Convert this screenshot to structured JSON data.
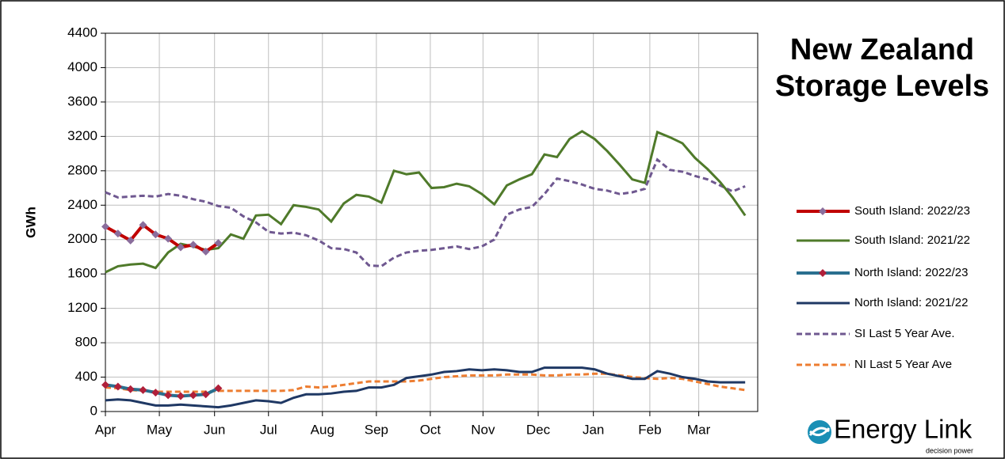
{
  "chart_data": {
    "type": "line",
    "title": "New Zealand Storage Levels",
    "y_label": "GWh",
    "x": [
      0,
      1,
      2,
      3,
      4,
      5,
      6,
      7,
      8,
      9,
      10,
      11,
      12,
      13,
      14,
      15,
      16,
      17,
      18,
      19,
      20,
      21,
      22,
      23,
      24,
      25,
      26,
      27,
      28,
      29,
      30,
      31,
      32,
      33,
      34,
      35,
      36,
      37,
      38,
      39,
      40,
      41,
      42,
      43,
      44,
      45,
      46,
      47,
      48,
      49,
      50,
      51
    ],
    "xlim": [
      0,
      52
    ],
    "xticks": [
      {
        "value": 0,
        "label": "Apr"
      },
      {
        "value": 4.3,
        "label": "May"
      },
      {
        "value": 8.7,
        "label": "Jun"
      },
      {
        "value": 13,
        "label": "Jul"
      },
      {
        "value": 17.3,
        "label": "Aug"
      },
      {
        "value": 21.6,
        "label": "Sep"
      },
      {
        "value": 25.9,
        "label": "Oct"
      },
      {
        "value": 30.1,
        "label": "Nov"
      },
      {
        "value": 34.5,
        "label": "Dec"
      },
      {
        "value": 38.9,
        "label": "Jan"
      },
      {
        "value": 43.4,
        "label": "Feb"
      },
      {
        "value": 47.3,
        "label": "Mar"
      }
    ],
    "ylim": [
      0,
      4400
    ],
    "yticks": [
      0,
      400,
      800,
      1200,
      1600,
      2000,
      2400,
      2800,
      3200,
      3600,
      4000,
      4400
    ],
    "grid": true,
    "legend": "right",
    "series": [
      {
        "name": "South Island: 2022/23",
        "color": "#c00000",
        "marker": "diamond",
        "marker_color": "#8a6d9c",
        "dash": "solid",
        "values": [
          2150,
          2070,
          1990,
          2170,
          2060,
          2010,
          1910,
          1940,
          1860,
          1960,
          null,
          null,
          null,
          null,
          null,
          null,
          null,
          null,
          null,
          null,
          null,
          null,
          null,
          null,
          null,
          null,
          null,
          null,
          null,
          null,
          null,
          null,
          null,
          null,
          null,
          null,
          null,
          null,
          null,
          null,
          null,
          null,
          null,
          null,
          null,
          null,
          null,
          null,
          null,
          null,
          null,
          null
        ]
      },
      {
        "name": "South Island: 2021/22",
        "color": "#4f7a2a",
        "dash": "solid",
        "values": [
          1620,
          1690,
          1710,
          1720,
          1670,
          1850,
          1950,
          1920,
          1880,
          1900,
          2060,
          2010,
          2280,
          2290,
          2180,
          2400,
          2380,
          2350,
          2210,
          2420,
          2520,
          2500,
          2430,
          2800,
          2760,
          2780,
          2600,
          2610,
          2650,
          2620,
          2530,
          2410,
          2630,
          2700,
          2760,
          2990,
          2960,
          3170,
          3260,
          3170,
          3030,
          2870,
          2700,
          2660,
          3250,
          3190,
          3120,
          2950,
          2820,
          2670,
          2490,
          2280
        ]
      },
      {
        "name": "North Island: 2022/23",
        "color": "#2a6f8f",
        "marker": "diamond",
        "marker_color": "#b0203a",
        "dash": "solid",
        "values": [
          310,
          290,
          260,
          250,
          220,
          190,
          180,
          190,
          200,
          270,
          null,
          null,
          null,
          null,
          null,
          null,
          null,
          null,
          null,
          null,
          null,
          null,
          null,
          null,
          null,
          null,
          null,
          null,
          null,
          null,
          null,
          null,
          null,
          null,
          null,
          null,
          null,
          null,
          null,
          null,
          null,
          null,
          null,
          null,
          null,
          null,
          null,
          null,
          null,
          null,
          null,
          null
        ]
      },
      {
        "name": "North Island: 2021/22",
        "color": "#1f3864",
        "dash": "solid",
        "values": [
          130,
          140,
          130,
          100,
          70,
          70,
          80,
          70,
          60,
          50,
          70,
          100,
          130,
          120,
          100,
          160,
          200,
          200,
          210,
          230,
          240,
          280,
          280,
          310,
          390,
          410,
          430,
          460,
          470,
          490,
          480,
          490,
          480,
          460,
          460,
          510,
          510,
          510,
          510,
          490,
          440,
          410,
          380,
          380,
          470,
          440,
          400,
          380,
          350,
          340,
          340,
          340
        ]
      },
      {
        "name": "SI Last 5 Year Ave.",
        "color": "#6f5890",
        "dash": "dashed",
        "values": [
          2550,
          2490,
          2500,
          2510,
          2500,
          2530,
          2510,
          2470,
          2440,
          2390,
          2370,
          2270,
          2200,
          2090,
          2070,
          2080,
          2050,
          1990,
          1900,
          1890,
          1850,
          1700,
          1690,
          1790,
          1850,
          1870,
          1880,
          1900,
          1920,
          1890,
          1920,
          2000,
          2290,
          2350,
          2380,
          2530,
          2710,
          2680,
          2640,
          2590,
          2570,
          2530,
          2550,
          2590,
          2930,
          2810,
          2790,
          2740,
          2700,
          2630,
          2560,
          2620
        ]
      },
      {
        "name": "NI Last 5 Year Ave",
        "color": "#ed7d31",
        "dash": "dashed",
        "values": [
          280,
          270,
          250,
          240,
          230,
          230,
          230,
          230,
          230,
          240,
          240,
          240,
          240,
          240,
          240,
          250,
          290,
          280,
          290,
          310,
          330,
          350,
          350,
          350,
          350,
          360,
          380,
          400,
          410,
          420,
          420,
          420,
          430,
          430,
          430,
          420,
          420,
          430,
          430,
          440,
          440,
          420,
          400,
          390,
          380,
          390,
          380,
          350,
          320,
          290,
          270,
          250
        ]
      }
    ],
    "logo": {
      "name": "Energy Link",
      "tagline": "decision power"
    }
  }
}
